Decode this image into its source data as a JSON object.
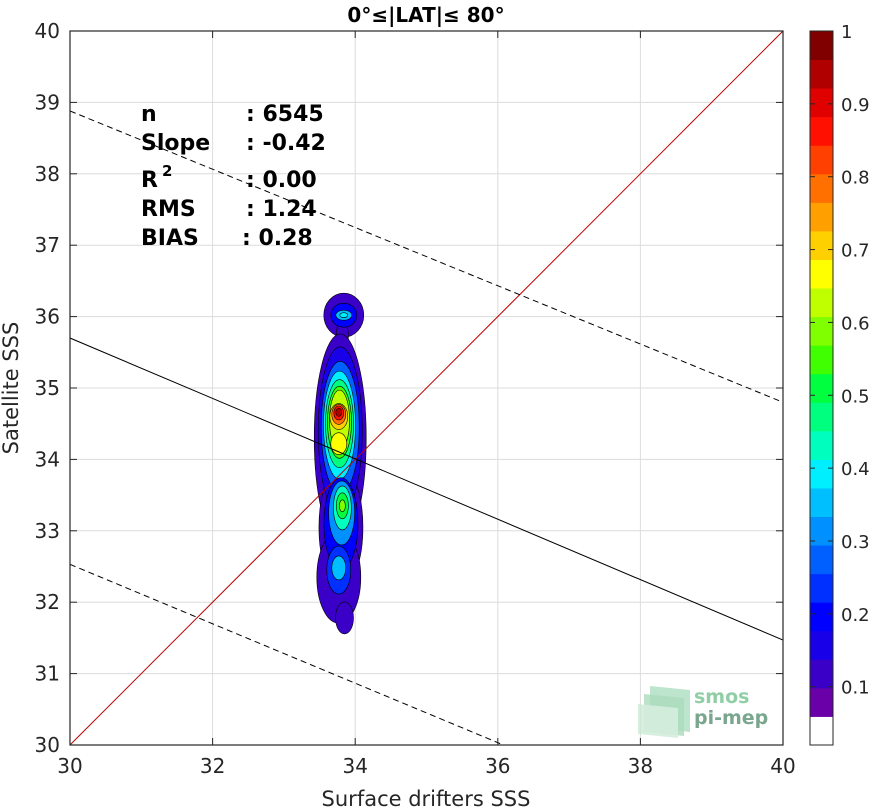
{
  "chart_data": {
    "type": "contour",
    "title": "0°≤|LAT|≤ 80°",
    "xlabel": "Surface drifters SSS",
    "ylabel": "Satellite SSS",
    "xlim": [
      30,
      40
    ],
    "ylim": [
      30,
      40
    ],
    "x_ticks": [
      "30",
      "32",
      "34",
      "36",
      "38",
      "40"
    ],
    "y_ticks": [
      "30",
      "31",
      "32",
      "33",
      "34",
      "35",
      "36",
      "37",
      "38",
      "39",
      "40"
    ],
    "grid": true,
    "stats": {
      "n_label": "n",
      "n_value": ": 6545",
      "slope_label": "Slope",
      "slope_value": ": -0.42",
      "r2_label": "R",
      "r2_sup": "2",
      "r2_value": ": 0.00",
      "rms_label": "RMS",
      "rms_value": ": 1.24",
      "bias_label": "BIAS",
      "bias_value": ": 0.28"
    },
    "lines": [
      {
        "name": "one-to-one",
        "style": "solid",
        "color": "#c00000",
        "x": [
          30,
          40
        ],
        "y": [
          30,
          40
        ]
      },
      {
        "name": "regression",
        "style": "solid",
        "color": "#000000",
        "x": [
          30,
          40
        ],
        "y": [
          35.7,
          31.47
        ]
      },
      {
        "name": "upper-bound",
        "style": "dashed",
        "color": "#000000",
        "x": [
          30,
          40
        ],
        "y": [
          38.88,
          34.8
        ]
      },
      {
        "name": "lower-bound",
        "style": "dashed",
        "color": "#000000",
        "x": [
          30,
          36.2
        ],
        "y": [
          32.53,
          29.95
        ]
      }
    ],
    "density_peaks": [
      {
        "x": 33.77,
        "y": 34.65,
        "level": 1.0
      },
      {
        "x": 33.77,
        "y": 34.22,
        "level": 0.7
      },
      {
        "x": 33.82,
        "y": 33.35,
        "level": 0.6
      },
      {
        "x": 33.77,
        "y": 32.48,
        "level": 0.35
      },
      {
        "x": 33.84,
        "y": 36.02,
        "level": 0.45
      }
    ],
    "colorbar": {
      "ticks": [
        "0.1",
        "0.2",
        "0.3",
        "0.4",
        "0.5",
        "0.6",
        "0.7",
        "0.8",
        "0.9",
        "1"
      ],
      "tick_values": [
        0.1,
        0.2,
        0.3,
        0.4,
        0.5,
        0.6,
        0.7,
        0.8,
        0.9,
        1.0
      ],
      "colors": [
        "#ffffff",
        "#6a00a8",
        "#3a00c8",
        "#1800e8",
        "#0000ff",
        "#0030ff",
        "#005fff",
        "#0090ff",
        "#00bfff",
        "#00efff",
        "#00ffbf",
        "#00ff7f",
        "#00ff3f",
        "#40ff00",
        "#80ff00",
        "#bfff00",
        "#ffff00",
        "#ffd000",
        "#ffa000",
        "#ff7000",
        "#ff4000",
        "#ff1000",
        "#e00000",
        "#b00000",
        "#800000"
      ]
    }
  },
  "logo": {
    "line1": "smos",
    "line2": "pi-mep"
  }
}
